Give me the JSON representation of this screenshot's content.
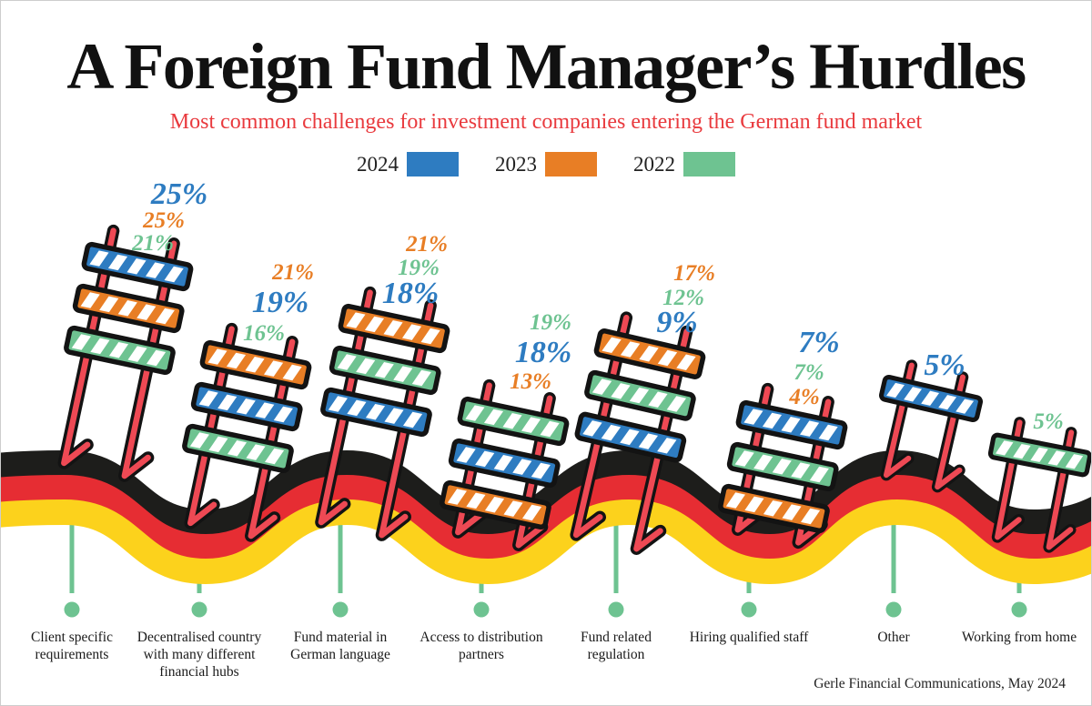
{
  "title": "A Foreign Fund Manager’s Hurdles",
  "subtitle": "Most common challenges for investment companies entering the German fund market",
  "legend": [
    {
      "year": "2024",
      "color": "#2e7cc1"
    },
    {
      "year": "2023",
      "color": "#e87e25"
    },
    {
      "year": "2022",
      "color": "#6ec391"
    }
  ],
  "colors": {
    "title_black": "#111111",
    "subtitle_red": "#e93a3e",
    "flag_black": "#1d1d1b",
    "flag_red": "#e62d33",
    "flag_gold": "#fcd21c",
    "leg_red": "#ee4954",
    "outline_black": "#131313",
    "connector_green": "#6ec391"
  },
  "categories": [
    {
      "name": "Client specific requirements",
      "labels": [
        {
          "year": "2024",
          "value": "25%"
        },
        {
          "year": "2023",
          "value": "25%"
        },
        {
          "year": "2022",
          "value": "21%"
        }
      ]
    },
    {
      "name": "Decentralised country with many different financial hubs",
      "labels": [
        {
          "year": "2023",
          "value": "21%"
        },
        {
          "year": "2024",
          "value": "19%"
        },
        {
          "year": "2022",
          "value": "16%"
        }
      ]
    },
    {
      "name": "Fund material in German language",
      "labels": [
        {
          "year": "2023",
          "value": "21%"
        },
        {
          "year": "2022",
          "value": "19%"
        },
        {
          "year": "2024",
          "value": "18%"
        }
      ]
    },
    {
      "name": "Access to distribution partners",
      "labels": [
        {
          "year": "2022",
          "value": "19%"
        },
        {
          "year": "2024",
          "value": "18%"
        },
        {
          "year": "2023",
          "value": "13%"
        }
      ]
    },
    {
      "name": "Fund related regulation",
      "labels": [
        {
          "year": "2023",
          "value": "17%"
        },
        {
          "year": "2022",
          "value": "12%"
        },
        {
          "year": "2024",
          "value": "9%"
        }
      ]
    },
    {
      "name": "Hiring qualified staff",
      "labels": [
        {
          "year": "2024",
          "value": "7%"
        },
        {
          "year": "2022",
          "value": "7%"
        },
        {
          "year": "2023",
          "value": "4%"
        }
      ]
    },
    {
      "name": "Other",
      "labels": [
        {
          "year": "2024",
          "value": "5%"
        }
      ]
    },
    {
      "name": "Working from home",
      "labels": [
        {
          "year": "2022",
          "value": "5%"
        }
      ]
    }
  ],
  "footer": "Gerle Financial Communications, May 2024",
  "chart_data": {
    "type": "bar",
    "title": "A Foreign Fund Manager’s Hurdles",
    "subtitle": "Most common challenges for investment companies entering the German fund market",
    "unit": "%",
    "legend_position": "top",
    "categories": [
      "Client specific requirements",
      "Decentralised country with many different financial hubs",
      "Fund material in German language",
      "Access to distribution partners",
      "Fund related regulation",
      "Hiring qualified staff",
      "Other",
      "Working from home"
    ],
    "series": [
      {
        "name": "2024",
        "color": "#2e7cc1",
        "values": [
          25,
          19,
          18,
          18,
          9,
          7,
          5,
          null
        ]
      },
      {
        "name": "2023",
        "color": "#e87e25",
        "values": [
          25,
          21,
          21,
          13,
          17,
          4,
          null,
          null
        ]
      },
      {
        "name": "2022",
        "color": "#6ec391",
        "values": [
          21,
          16,
          19,
          19,
          12,
          7,
          null,
          5
        ]
      }
    ],
    "source": "Gerle Financial Communications, May 2024"
  }
}
